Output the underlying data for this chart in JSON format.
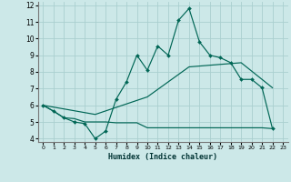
{
  "xlabel": "Humidex (Indice chaleur)",
  "xlim": [
    -0.5,
    23.5
  ],
  "ylim": [
    3.8,
    12.2
  ],
  "yticks": [
    4,
    5,
    6,
    7,
    8,
    9,
    10,
    11,
    12
  ],
  "xticks": [
    0,
    1,
    2,
    3,
    4,
    5,
    6,
    7,
    8,
    9,
    10,
    11,
    12,
    13,
    14,
    15,
    16,
    17,
    18,
    19,
    20,
    21,
    22,
    23
  ],
  "bg_color": "#cce8e8",
  "grid_color": "#aacfcf",
  "line_color": "#006655",
  "line1_x": [
    0,
    1,
    2,
    3,
    4,
    5,
    6,
    7,
    8,
    9,
    10,
    11,
    12,
    13,
    14,
    15,
    16,
    17,
    18,
    19,
    20,
    21,
    22
  ],
  "line1_y": [
    6.0,
    5.65,
    5.25,
    5.0,
    4.9,
    4.0,
    4.45,
    6.35,
    7.4,
    9.0,
    8.1,
    9.55,
    9.0,
    11.1,
    11.8,
    9.8,
    9.0,
    8.85,
    8.55,
    7.55,
    7.55,
    7.05,
    4.6
  ],
  "line2_x": [
    0,
    5,
    10,
    14,
    19,
    21,
    22
  ],
  "line2_y": [
    6.0,
    5.45,
    6.5,
    8.3,
    8.55,
    7.55,
    7.05
  ],
  "line3_x": [
    0,
    1,
    2,
    3,
    4,
    5,
    6,
    7,
    8,
    9,
    10,
    11,
    12,
    13,
    14,
    15,
    16,
    17,
    18,
    19,
    20,
    21,
    22
  ],
  "line3_y": [
    6.0,
    5.65,
    5.25,
    5.2,
    5.0,
    5.0,
    5.0,
    4.95,
    4.95,
    4.95,
    4.65,
    4.65,
    4.65,
    4.65,
    4.65,
    4.65,
    4.65,
    4.65,
    4.65,
    4.65,
    4.65,
    4.65,
    4.6
  ]
}
